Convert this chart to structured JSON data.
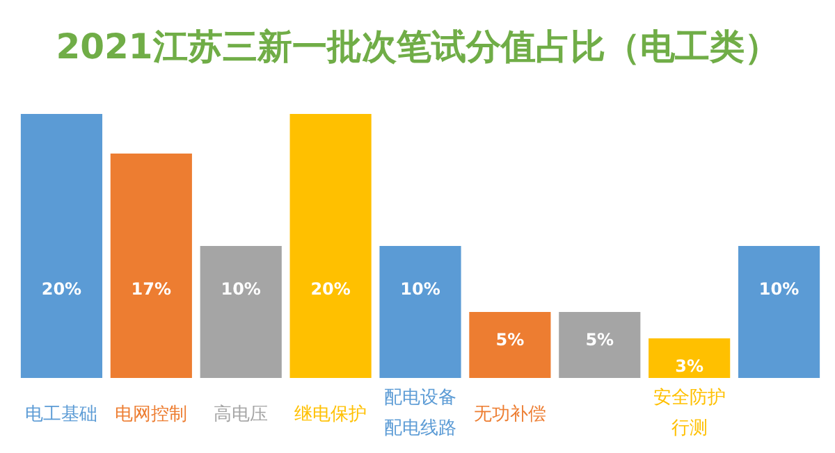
{
  "chart_data": {
    "type": "bar",
    "title": "2021江苏三新一批次笔试分值占比（电工类）",
    "categories": [
      "电工基础",
      "电网控制",
      "高电压",
      "继电保护",
      "配电设备配电线路",
      "无功补偿",
      null,
      "安全防护行测",
      null
    ],
    "values": [
      20,
      17,
      10,
      20,
      10,
      5,
      5,
      3,
      10
    ],
    "value_labels": [
      "20%",
      "17%",
      "10%",
      "20%",
      "10%",
      "5%",
      "5%",
      "3%",
      "10%"
    ],
    "colors": [
      "#5b9bd5",
      "#ed7d31",
      "#a5a5a5",
      "#ffc000",
      "#5b9bd5",
      "#ed7d31",
      "#a5a5a5",
      "#ffc000",
      "#5b9bd5"
    ]
  }
}
